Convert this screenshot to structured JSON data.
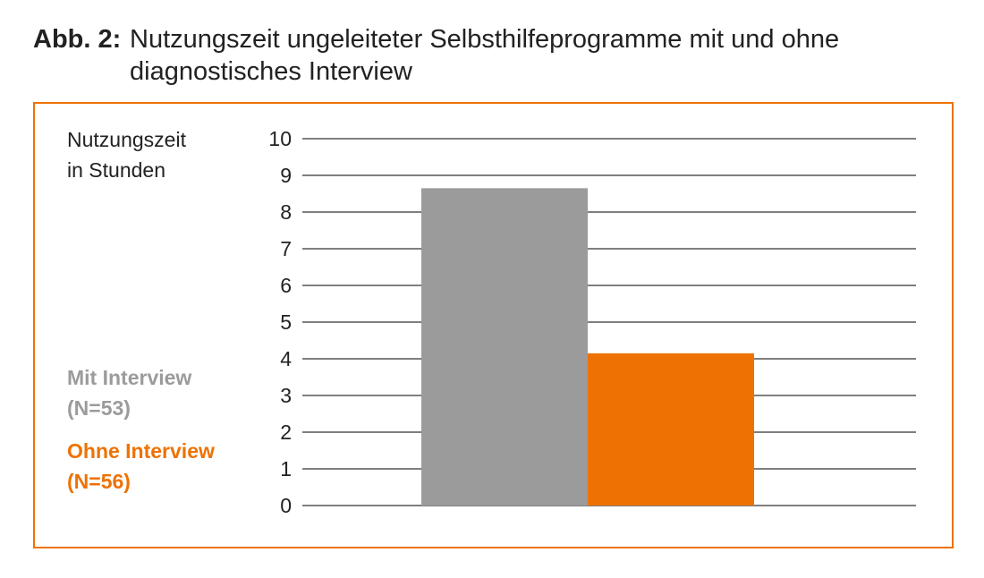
{
  "caption": {
    "label": "Abb. 2:",
    "text": "Nutzungszeit ungeleiteter Selbsthilfeprogramme mit und ohne diagnostisches Interview"
  },
  "colors": {
    "frame": "#ee7203",
    "gridline": "#333333",
    "text": "#222222"
  },
  "chart_data": {
    "type": "bar",
    "title": "",
    "ylabel_lines": [
      "Nutzungszeit",
      "in Stunden"
    ],
    "xlabel": "",
    "ylim": [
      0,
      10
    ],
    "yticks": [
      0,
      1,
      2,
      3,
      4,
      5,
      6,
      7,
      8,
      9,
      10
    ],
    "grid": true,
    "legend_position": "left",
    "series": [
      {
        "name_line1": "Mit Interview",
        "name_line2": "(N=53)",
        "value": 8.65,
        "color": "#9b9b9b"
      },
      {
        "name_line1": "Ohne Interview",
        "name_line2": "(N=56)",
        "value": 4.15,
        "color": "#ee7203"
      }
    ]
  }
}
